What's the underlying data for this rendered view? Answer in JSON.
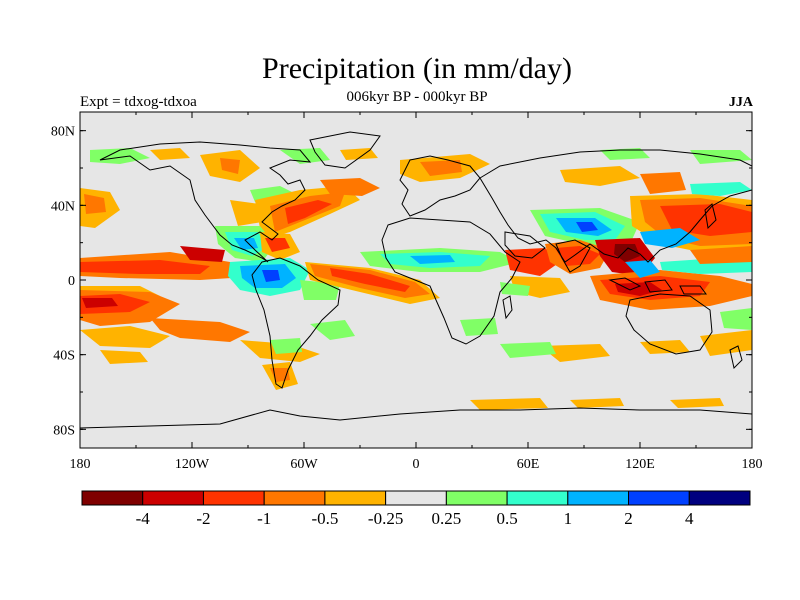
{
  "title": "Precipitation (in mm/day)",
  "subtitle": "006kyr BP - 000kyr BP",
  "left_label": "Expt = tdxog-tdxoa",
  "right_label": "JJA",
  "x_ticks": [
    "180",
    "120W",
    "60W",
    "0",
    "60E",
    "120E",
    "180"
  ],
  "y_ticks": [
    "80N",
    "40N",
    "0",
    "40S",
    "80S"
  ],
  "colorbar": {
    "colors": [
      "#7f0000",
      "#cc0000",
      "#ff3300",
      "#ff7700",
      "#ffb300",
      "#e6e6e6",
      "#80ff66",
      "#33ffcc",
      "#00b3ff",
      "#0040ff",
      "#00007f"
    ],
    "labels": [
      "-4",
      "-2",
      "-1",
      "-0.5",
      "-0.25",
      "0.25",
      "0.5",
      "1",
      "2",
      "4"
    ]
  },
  "chart_data": {
    "type": "heatmap",
    "title": "Precipitation (in mm/day)",
    "subtitle": "006kyr BP - 000kyr BP",
    "experiment": "Expt = tdxog-tdxoa",
    "season": "JJA",
    "xlim": [
      -180,
      180
    ],
    "ylim": [
      -90,
      90
    ],
    "levels": [
      -4,
      -2,
      -1,
      -0.5,
      -0.25,
      0.25,
      0.5,
      1,
      2,
      4
    ],
    "regions": [
      {
        "lon": [
          -180,
          -100
        ],
        "lat": [
          3,
          12
        ],
        "level": "-1"
      },
      {
        "lon": [
          -180,
          -120
        ],
        "lat": [
          -20,
          -5
        ],
        "level": "-2"
      },
      {
        "lon": [
          -150,
          -110
        ],
        "lat": [
          -30,
          -22
        ],
        "level": "-0.5"
      },
      {
        "lon": [
          -135,
          -105
        ],
        "lat": [
          50,
          62
        ],
        "level": "-0.5"
      },
      {
        "lon": [
          -80,
          -55
        ],
        "lat": [
          32,
          45
        ],
        "level": "-1"
      },
      {
        "lon": [
          -100,
          -70
        ],
        "lat": [
          14,
          30
        ],
        "level": "1"
      },
      {
        "lon": [
          -80,
          -60
        ],
        "lat": [
          -5,
          6
        ],
        "level": "2"
      },
      {
        "lon": [
          -60,
          10
        ],
        "lat": [
          2,
          10
        ],
        "level": "-1"
      },
      {
        "lon": [
          -10,
          70
        ],
        "lat": [
          10,
          17
        ],
        "level": "1"
      },
      {
        "lon": [
          70,
          100
        ],
        "lat": [
          20,
          33
        ],
        "level": "2"
      },
      {
        "lon": [
          100,
          160
        ],
        "lat": [
          15,
          40
        ],
        "level": "-1"
      },
      {
        "lon": [
          80,
          110
        ],
        "lat": [
          5,
          20
        ],
        "level": "-2"
      },
      {
        "lon": [
          100,
          130
        ],
        "lat": [
          -8,
          5
        ],
        "level": "-2"
      },
      {
        "lon": [
          140,
          180
        ],
        "lat": [
          5,
          15
        ],
        "level": "-1"
      },
      {
        "lon": [
          40,
          140
        ],
        "lat": [
          -40,
          -33
        ],
        "level": "-0.25"
      }
    ]
  }
}
